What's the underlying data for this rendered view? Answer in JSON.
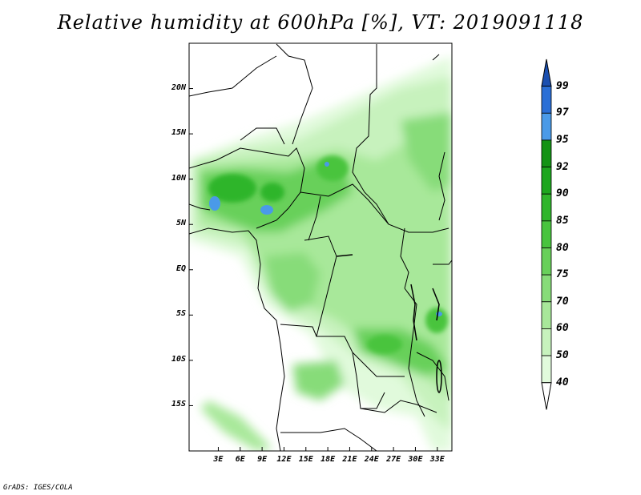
{
  "title": "Relative humidity at 600hPa [%], VT: 2019091118",
  "credit": "GrADS: IGES/COLA",
  "map": {
    "extent_lon": [
      -1,
      35
    ],
    "extent_lat": [
      -20,
      25
    ],
    "lat_ticks": [
      {
        "value": 20,
        "label": "20N"
      },
      {
        "value": 15,
        "label": "15N"
      },
      {
        "value": 10,
        "label": "10N"
      },
      {
        "value": 5,
        "label": "5N"
      },
      {
        "value": 0,
        "label": "EQ"
      },
      {
        "value": -5,
        "label": "5S"
      },
      {
        "value": -10,
        "label": "10S"
      },
      {
        "value": -15,
        "label": "15S"
      }
    ],
    "lon_ticks": [
      {
        "value": 3,
        "label": "3E"
      },
      {
        "value": 6,
        "label": "6E"
      },
      {
        "value": 9,
        "label": "9E"
      },
      {
        "value": 12,
        "label": "12E"
      },
      {
        "value": 15,
        "label": "15E"
      },
      {
        "value": 18,
        "label": "18E"
      },
      {
        "value": 21,
        "label": "21E"
      },
      {
        "value": 24,
        "label": "24E"
      },
      {
        "value": 27,
        "label": "27E"
      },
      {
        "value": 30,
        "label": "30E"
      },
      {
        "value": 33,
        "label": "33E"
      }
    ]
  },
  "colorbar": {
    "levels": [
      "40",
      "50",
      "60",
      "70",
      "75",
      "80",
      "85",
      "90",
      "92",
      "95",
      "97",
      "99"
    ],
    "colors": [
      "#ffffff",
      "#e1fadc",
      "#c7f2bd",
      "#a8e89a",
      "#87dc79",
      "#68d05a",
      "#48c43e",
      "#2fb52b",
      "#1da61e",
      "#139314",
      "#4a9ae8",
      "#2a6fd6",
      "#1a4fb0"
    ]
  },
  "palette": {
    "land_outline": "#000000",
    "sea": "#ffffff"
  }
}
